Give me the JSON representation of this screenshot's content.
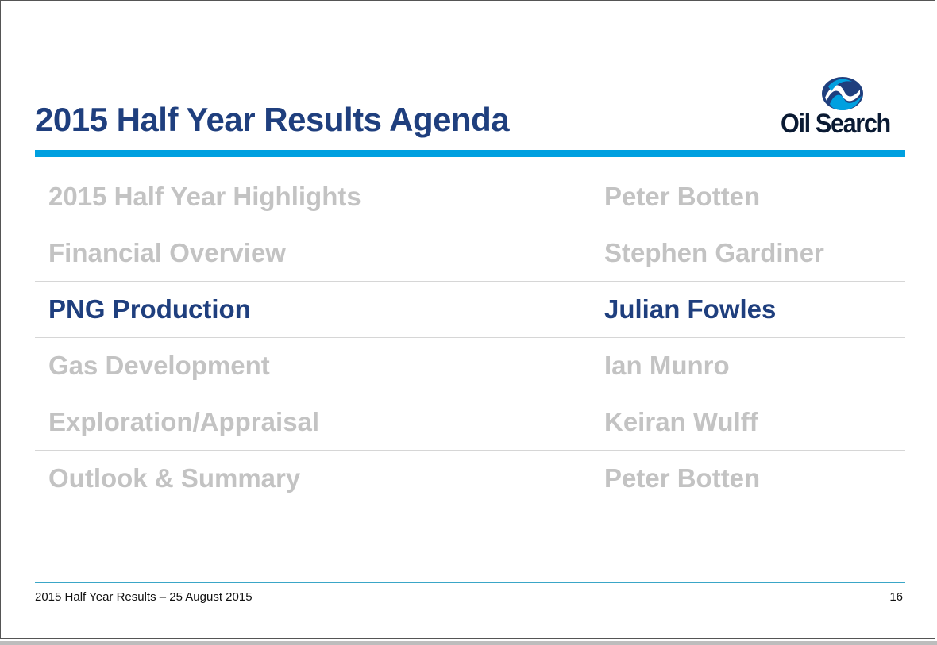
{
  "slide": {
    "title": "2015 Half Year Results Agenda",
    "logo_text": "Oil Search",
    "agenda": [
      {
        "topic": "2015 Half Year Highlights",
        "speaker": "Peter Botten",
        "active": false
      },
      {
        "topic": "Financial Overview",
        "speaker": "Stephen Gardiner",
        "active": false
      },
      {
        "topic": "PNG Production",
        "speaker": "Julian Fowles",
        "active": true
      },
      {
        "topic": "Gas Development",
        "speaker": "Ian Munro",
        "active": false
      },
      {
        "topic": "Exploration/Appraisal",
        "speaker": "Keiran Wulff",
        "active": false
      },
      {
        "topic": "Outlook & Summary",
        "speaker": "Peter Botten",
        "active": false
      }
    ],
    "footer_text": "2015 Half Year Results – 25 August 2015",
    "page_number": "16"
  },
  "colors": {
    "title": "#1f3f7e",
    "accent_rule": "#00a0e0",
    "inactive_text": "#c3c3c3",
    "active_text": "#1f3f7e"
  }
}
